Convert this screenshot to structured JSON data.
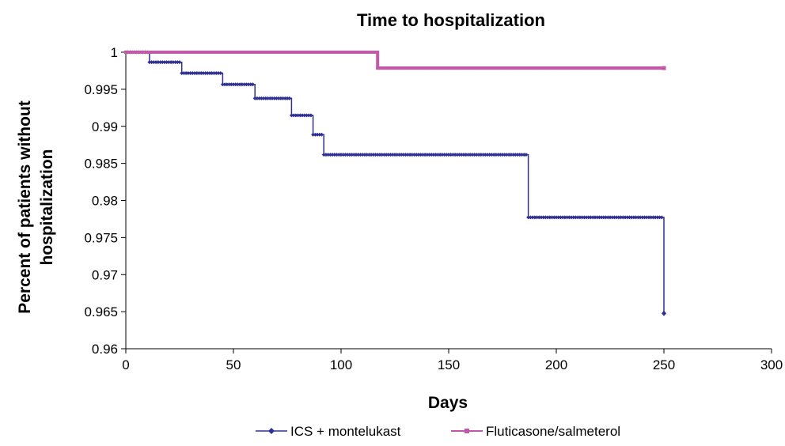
{
  "chart_data": {
    "type": "line",
    "title": "Time to hospitalization",
    "xlabel": "Days",
    "ylabel_lines": [
      "Percent of patients without",
      "hospitalization"
    ],
    "xlim": [
      0,
      300
    ],
    "ylim": [
      0.96,
      1
    ],
    "x_ticks": [
      0,
      50,
      100,
      150,
      200,
      250,
      300
    ],
    "y_ticks": [
      0.96,
      0.965,
      0.97,
      0.975,
      0.98,
      0.985,
      0.99,
      0.995,
      1
    ],
    "y_tick_labels": [
      "0.96",
      "0.965",
      "0.97",
      "0.975",
      "0.98",
      "0.985",
      "0.99",
      "0.995",
      "1"
    ],
    "legend_position": "bottom",
    "series": [
      {
        "name": "ICS + montelukast",
        "color": "#2e3192",
        "marker": "diamond",
        "step": true,
        "points": [
          [
            0,
            1
          ],
          [
            11,
            1
          ],
          [
            11,
            0.99865
          ],
          [
            26,
            0.99865
          ],
          [
            26,
            0.99718
          ],
          [
            45,
            0.99718
          ],
          [
            45,
            0.99565
          ],
          [
            60,
            0.99565
          ],
          [
            60,
            0.99378
          ],
          [
            77,
            0.99378
          ],
          [
            77,
            0.99148
          ],
          [
            87,
            0.99148
          ],
          [
            87,
            0.98888
          ],
          [
            92,
            0.98888
          ],
          [
            92,
            0.98618
          ],
          [
            187,
            0.98618
          ],
          [
            187,
            0.97772
          ],
          [
            250,
            0.97772
          ],
          [
            250,
            0.96478
          ]
        ]
      },
      {
        "name": "Fluticasone/salmeterol",
        "color": "#c158a8",
        "marker": "square",
        "step": true,
        "points": [
          [
            0,
            1
          ],
          [
            117,
            1
          ],
          [
            117,
            0.99786
          ],
          [
            250,
            0.99786
          ]
        ]
      }
    ]
  }
}
